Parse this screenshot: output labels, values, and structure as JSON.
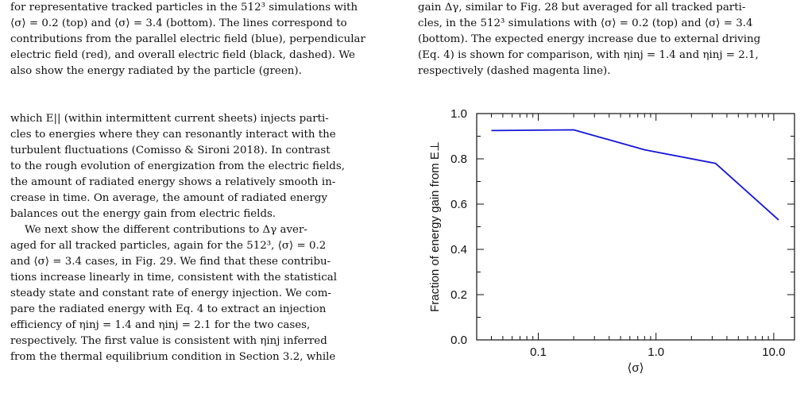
{
  "left_column": {
    "caption_lines": [
      "for representative tracked particles in the 512³ simulations with",
      "⟨σ⟩ = 0.2 (top) and ⟨σ⟩ = 3.4 (bottom). The lines correspond to",
      "contributions from the parallel electric field (blue), perpendicular",
      "electric field (red), and overall electric field (black, dashed). We",
      "also show the energy radiated by the particle (green)."
    ],
    "para1_lines": [
      "which E|| (within intermittent current sheets) injects parti-",
      "cles to energies where they can resonantly interact with the",
      "turbulent fluctuations (Comisso & Sironi 2018). In contrast",
      "to the rough evolution of energization from the electric fields,",
      "the amount of radiated energy shows a relatively smooth in-",
      "crease in time. On average, the amount of radiated energy",
      "balances out the energy gain from electric fields."
    ],
    "para2_lines": [
      "We next show the different contributions to Δγ aver-",
      "aged for all tracked particles, again for the 512³, ⟨σ⟩ = 0.2",
      "and ⟨σ⟩ = 3.4 cases, in Fig. 29. We find that these contribu-",
      "tions increase linearly in time, consistent with the statistical",
      "steady state and constant rate of energy injection. We com-",
      "pare the radiated energy with Eq. 4 to extract an injection",
      "efficiency of ηinj = 1.4 and ηinj = 2.1 for the two cases,",
      "respectively. The first value is consistent with ηinj inferred",
      "from the thermal equilibrium condition in Section 3.2, while"
    ]
  },
  "right_column": {
    "caption_lines": [
      "gain Δγ, similar to Fig. 28 but averaged for all tracked parti-",
      "cles, in the 512³ simulations with ⟨σ⟩ = 0.2 (top) and ⟨σ⟩ = 3.4",
      "(bottom). The expected energy increase due to external driving",
      "(Eq. 4) is shown for comparison, with ηinj = 1.4 and ηinj = 2.1,",
      "respectively (dashed magenta line)."
    ]
  },
  "colors": {
    "line": "#1515d6",
    "link": "#1f4fa8",
    "axis": "#111111"
  },
  "chart_data": {
    "type": "line",
    "xscale": "log",
    "xlabel": "⟨σ⟩",
    "ylabel": "Fraction of energy gain from E⊥",
    "xlim": [
      0.03,
      15
    ],
    "ylim": [
      0.0,
      1.0
    ],
    "xtick_labels": [
      "0.1",
      "1.0",
      "10.0"
    ],
    "xticks": [
      0.1,
      1.0,
      10.0
    ],
    "ytick_labels": [
      "0.0",
      "0.2",
      "0.4",
      "0.6",
      "0.8",
      "1.0"
    ],
    "yticks": [
      0.0,
      0.2,
      0.4,
      0.6,
      0.8,
      1.0
    ],
    "series": [
      {
        "x": [
          0.04,
          0.2,
          0.8,
          3.2,
          11.0
        ],
        "y": [
          0.925,
          0.928,
          0.84,
          0.78,
          0.53
        ]
      }
    ]
  }
}
